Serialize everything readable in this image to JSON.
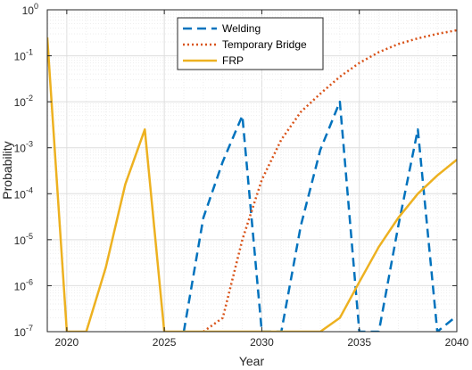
{
  "chart_data": {
    "type": "line",
    "xlabel": "Year",
    "ylabel": "Probability",
    "xlim": [
      2019,
      2040
    ],
    "ylim": [
      1e-07,
      1
    ],
    "yscale": "log",
    "grid": true,
    "legend_position": "top-center",
    "xticks": [
      "2020",
      "2025",
      "2030",
      "2035",
      "2040"
    ],
    "yticks": [
      {
        "base": "10",
        "exp": "-7"
      },
      {
        "base": "10",
        "exp": "-6"
      },
      {
        "base": "10",
        "exp": "-5"
      },
      {
        "base": "10",
        "exp": "-4"
      },
      {
        "base": "10",
        "exp": "-3"
      },
      {
        "base": "10",
        "exp": "-2"
      },
      {
        "base": "10",
        "exp": "-1"
      },
      {
        "base": "10",
        "exp": "0"
      }
    ],
    "series": [
      {
        "name": "Welding",
        "color": "#0072BD",
        "style": "dashed",
        "x": [
          2026,
          2027,
          2028,
          2029,
          2030,
          2031,
          2032,
          2033,
          2034,
          2035,
          2036,
          2037,
          2038,
          2039,
          2040
        ],
        "y": [
          1e-07,
          3e-05,
          0.0005,
          0.005,
          1e-07,
          1e-07,
          2e-05,
          0.0009,
          0.01,
          1e-07,
          1e-07,
          2e-05,
          0.0025,
          1e-07,
          2.2e-07
        ]
      },
      {
        "name": "Temporary Bridge",
        "color": "#D95319",
        "style": "dotted",
        "x": [
          2027,
          2028,
          2029,
          2030,
          2031,
          2032,
          2033,
          2034,
          2035,
          2036,
          2037,
          2038,
          2039,
          2040
        ],
        "y": [
          1e-07,
          2e-07,
          1e-05,
          0.0002,
          0.0015,
          0.006,
          0.015,
          0.035,
          0.07,
          0.12,
          0.18,
          0.24,
          0.3,
          0.36
        ]
      },
      {
        "name": "FRP",
        "color": "#EDB120",
        "style": "solid",
        "x": [
          2019,
          2020,
          2021,
          2022,
          2023,
          2024,
          2025,
          2026,
          2027,
          2028,
          2029,
          2030,
          2031,
          2032,
          2033,
          2034,
          2035,
          2036,
          2037,
          2038,
          2039,
          2040
        ],
        "y": [
          0.25,
          1e-07,
          1e-07,
          2.5e-06,
          0.00016,
          0.0025,
          1e-07,
          1e-07,
          1e-07,
          1e-07,
          1e-07,
          1e-07,
          1e-07,
          1e-07,
          1e-07,
          2e-07,
          1.2e-06,
          7e-06,
          3e-05,
          0.0001,
          0.00025,
          0.00055
        ]
      }
    ]
  }
}
